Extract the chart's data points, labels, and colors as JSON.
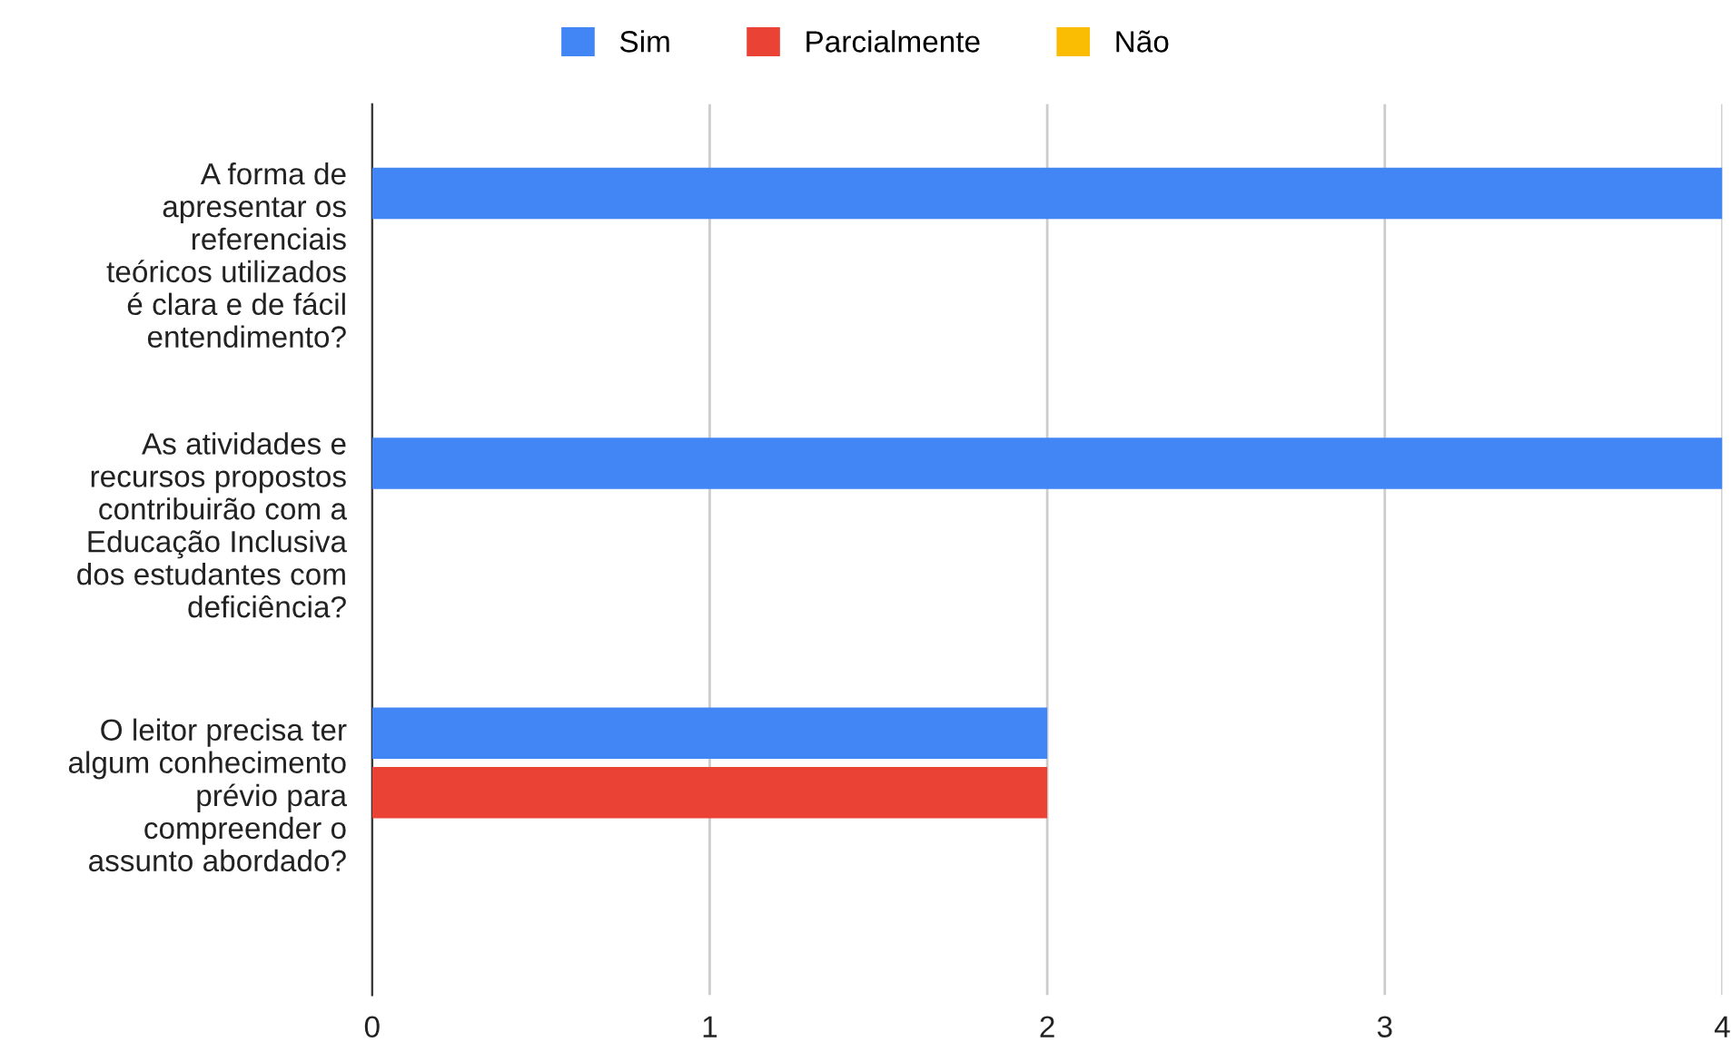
{
  "chart_data": {
    "type": "bar",
    "orientation": "horizontal",
    "categories": [
      "A forma de apresentar os referenciais teóricos utilizados é clara e de fácil entendimento?",
      "As atividades e recursos propostos contribuirão com a Educação Inclusiva dos estudantes com deficiência?",
      "O leitor precisa ter algum conhecimento prévio para compreender o assunto abordado?"
    ],
    "series": [
      {
        "name": "Sim",
        "color": "#4285f4",
        "values": [
          4,
          4,
          2
        ]
      },
      {
        "name": "Parcialmente",
        "color": "#ea4335",
        "values": [
          0,
          0,
          2
        ]
      },
      {
        "name": "Não",
        "color": "#fbbc04",
        "values": [
          0,
          0,
          0
        ]
      }
    ],
    "xlim": [
      0,
      4
    ],
    "xticks": [
      0,
      1,
      2,
      3,
      4
    ],
    "grid": "x",
    "legend": "top"
  }
}
